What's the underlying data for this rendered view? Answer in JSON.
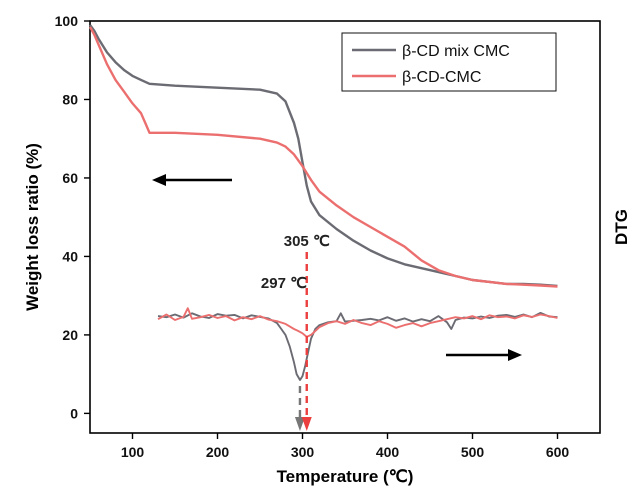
{
  "chart_data": {
    "type": "line",
    "xlabel": "Temperature (℃)",
    "ylabel": "Weight loss ratio (%)",
    "right_label": "DTG",
    "xlim": [
      50,
      650
    ],
    "ylim": [
      -5,
      100
    ],
    "xticks": [
      100,
      200,
      300,
      400,
      500,
      600
    ],
    "yticks": [
      0,
      20,
      40,
      60,
      80,
      100
    ],
    "grid": false,
    "legend_position": "top-right",
    "colors": {
      "mix": "#6b6b73",
      "cmc": "#ec6f6f",
      "arrow": "#000000"
    },
    "series": [
      {
        "name": "β-CD mix CMC",
        "color": "#6b6b73",
        "x": [
          50,
          55,
          60,
          70,
          80,
          90,
          100,
          110,
          120,
          150,
          200,
          250,
          270,
          280,
          290,
          295,
          300,
          305,
          310,
          320,
          340,
          360,
          380,
          400,
          420,
          440,
          460,
          480,
          500,
          520,
          540,
          560,
          580,
          600
        ],
        "y": [
          99,
          97.5,
          95.5,
          92,
          89.5,
          87.5,
          86,
          85,
          84,
          83.5,
          83,
          82.5,
          81.5,
          79.5,
          74,
          70,
          64,
          58,
          54,
          50.5,
          47,
          44,
          41.5,
          39.5,
          38,
          37,
          36,
          35,
          34,
          33.5,
          33,
          33,
          32.8,
          32.5
        ]
      },
      {
        "name": "β-CD-CMC",
        "color": "#ec6f6f",
        "x": [
          50,
          55,
          60,
          70,
          80,
          90,
          100,
          110,
          115,
          120,
          150,
          200,
          250,
          270,
          280,
          290,
          300,
          310,
          320,
          340,
          360,
          380,
          400,
          420,
          440,
          460,
          480,
          500,
          520,
          540,
          560,
          580,
          600
        ],
        "y": [
          98.5,
          96.5,
          94,
          89,
          85,
          82,
          79,
          76.5,
          74,
          71.5,
          71.5,
          71,
          70,
          69,
          68,
          66,
          63,
          59.5,
          56.5,
          53,
          50,
          47.5,
          45,
          42.5,
          39,
          36.5,
          35,
          34,
          33.5,
          33,
          32.8,
          32.6,
          32.3
        ]
      },
      {
        "name": "",
        "color": "#6b6b73",
        "x": [
          130,
          140,
          150,
          160,
          170,
          180,
          190,
          200,
          210,
          220,
          230,
          240,
          250,
          260,
          270,
          275,
          280,
          285,
          290,
          293,
          297,
          300,
          303,
          306,
          310,
          315,
          320,
          330,
          340,
          345,
          350,
          360,
          370,
          380,
          390,
          400,
          410,
          420,
          430,
          440,
          450,
          460,
          470,
          475,
          480,
          490,
          500,
          510,
          520,
          530,
          540,
          550,
          560,
          570,
          580,
          590,
          600
        ],
        "y": [
          24.8,
          24.5,
          25.2,
          24.4,
          25.5,
          24.7,
          24.3,
          25.3,
          24.9,
          25.1,
          24.2,
          25,
          24.6,
          24.2,
          23,
          21.5,
          20,
          17,
          13,
          10,
          8.5,
          9.5,
          12,
          15,
          19,
          21.5,
          22.5,
          23.2,
          23.5,
          25.5,
          23.4,
          23.6,
          23.8,
          24.1,
          23.7,
          24.5,
          23.6,
          24.2,
          23.4,
          24,
          23.5,
          24.8,
          23.2,
          21.5,
          23.8,
          24.4,
          24.2,
          24.7,
          24.3,
          24.9,
          25.1,
          24.6,
          25.2,
          24.5,
          25.6,
          24.7,
          24.5
        ]
      },
      {
        "name": "",
        "color": "#ec6f6f",
        "x": [
          130,
          140,
          150,
          160,
          165,
          170,
          180,
          190,
          200,
          210,
          220,
          230,
          240,
          250,
          260,
          270,
          280,
          290,
          295,
          300,
          305,
          310,
          315,
          320,
          330,
          340,
          350,
          360,
          370,
          380,
          390,
          400,
          410,
          420,
          430,
          440,
          450,
          460,
          470,
          480,
          490,
          500,
          510,
          520,
          530,
          540,
          550,
          560,
          570,
          580,
          590,
          600
        ],
        "y": [
          24,
          25.2,
          23.8,
          24.6,
          26.8,
          24.1,
          24.5,
          25.1,
          24.3,
          24.8,
          23.7,
          24.5,
          24,
          24.8,
          23.9,
          23.5,
          22.8,
          21.5,
          21,
          20.4,
          19.5,
          20,
          21,
          22,
          23,
          23.5,
          22.8,
          23.8,
          23,
          22.5,
          23.5,
          22.8,
          21.8,
          22.5,
          23,
          22.2,
          23,
          23.5,
          24,
          24.5,
          24.2,
          24.8,
          24,
          25,
          24.5,
          24.7,
          24.2,
          25,
          24.6,
          25.2,
          24.8,
          24.3
        ]
      }
    ],
    "annotations": [
      {
        "label": "297 ℃",
        "x": 297,
        "color": "#777777"
      },
      {
        "label": "305 ℃",
        "x": 305,
        "color": "#ec3f3f"
      }
    ]
  }
}
